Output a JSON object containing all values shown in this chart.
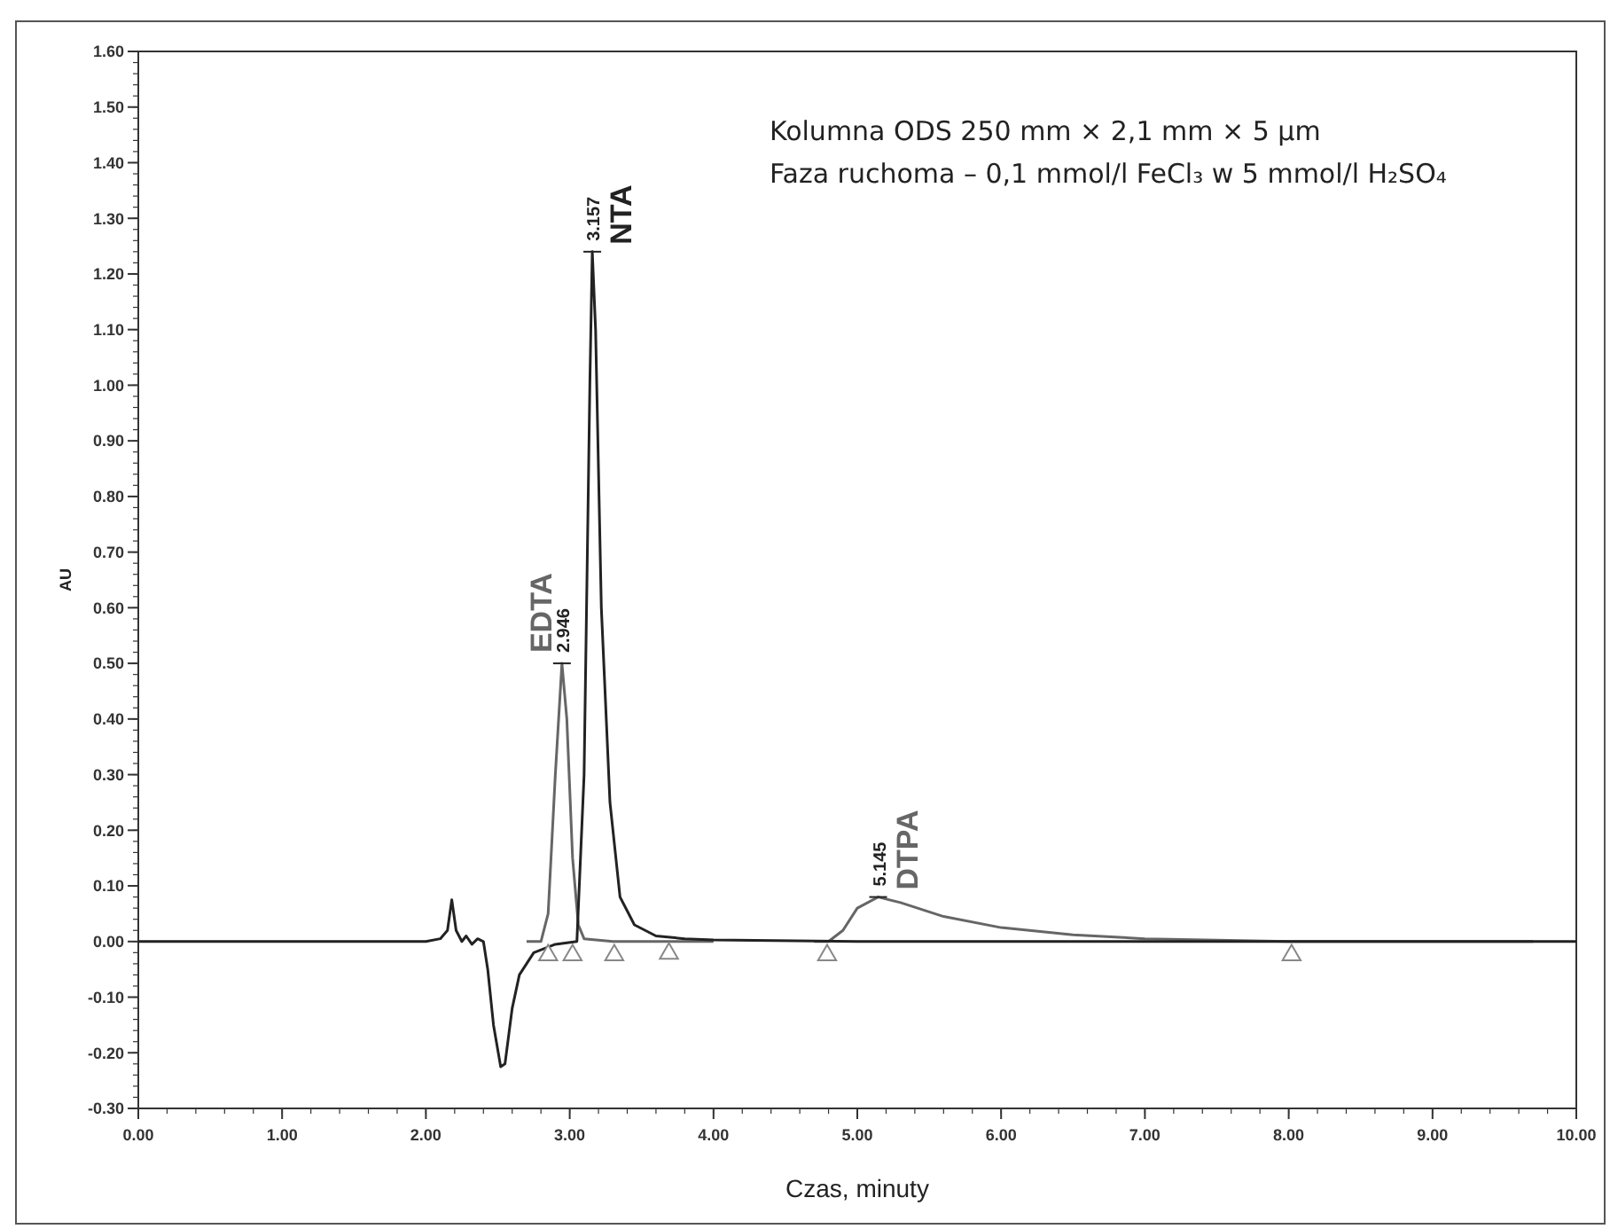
{
  "chart_data": {
    "type": "line",
    "xlabel": "Czas, minuty",
    "ylabel": "AU",
    "xlim": [
      0,
      10
    ],
    "ylim": [
      -0.3,
      1.6
    ],
    "xticks": [
      {
        "value": 0,
        "label": "0.00"
      },
      {
        "value": 1,
        "label": "1.00"
      },
      {
        "value": 2,
        "label": "2.00"
      },
      {
        "value": 3,
        "label": "3.00"
      },
      {
        "value": 4,
        "label": "4.00"
      },
      {
        "value": 5,
        "label": "5.00"
      },
      {
        "value": 6,
        "label": "6.00"
      },
      {
        "value": 7,
        "label": "7.00"
      },
      {
        "value": 8,
        "label": "8.00"
      },
      {
        "value": 9,
        "label": "9.00"
      },
      {
        "value": 10,
        "label": "10.00"
      }
    ],
    "yticks": [
      {
        "value": -0.3,
        "label": "-0.30"
      },
      {
        "value": -0.2,
        "label": "-0.20"
      },
      {
        "value": -0.1,
        "label": "-0.10"
      },
      {
        "value": 0,
        "label": "0.00"
      },
      {
        "value": 0.1,
        "label": "0.10"
      },
      {
        "value": 0.2,
        "label": "0.20"
      },
      {
        "value": 0.3,
        "label": "0.30"
      },
      {
        "value": 0.4,
        "label": "0.40"
      },
      {
        "value": 0.5,
        "label": "0.50"
      },
      {
        "value": 0.6,
        "label": "0.60"
      },
      {
        "value": 0.7,
        "label": "0.70"
      },
      {
        "value": 0.8,
        "label": "0.80"
      },
      {
        "value": 0.9,
        "label": "0.90"
      },
      {
        "value": 1.0,
        "label": "1.00"
      },
      {
        "value": 1.1,
        "label": "1.10"
      },
      {
        "value": 1.2,
        "label": "1.20"
      },
      {
        "value": 1.3,
        "label": "1.30"
      },
      {
        "value": 1.4,
        "label": "1.40"
      },
      {
        "value": 1.5,
        "label": "1.50"
      },
      {
        "value": 1.6,
        "label": "1.60"
      }
    ],
    "grid": false,
    "legend": false,
    "series": [
      {
        "name": "EDTA",
        "color": "#666666",
        "x": [
          2.7,
          2.8,
          2.85,
          2.9,
          2.946,
          2.98,
          3.02,
          3.06,
          3.1,
          3.3,
          4.0
        ],
        "values": [
          0,
          0,
          0.05,
          0.3,
          0.5,
          0.4,
          0.15,
          0.03,
          0.005,
          0,
          0
        ]
      },
      {
        "name": "DTPA",
        "color": "#666666",
        "x": [
          4.7,
          4.8,
          4.9,
          5.0,
          5.145,
          5.3,
          5.6,
          6.0,
          6.5,
          7.0,
          8.0,
          9.7
        ],
        "values": [
          0,
          0,
          0.02,
          0.06,
          0.08,
          0.07,
          0.045,
          0.025,
          0.012,
          0.005,
          0,
          0
        ]
      },
      {
        "name": "NTA",
        "color": "#222222",
        "x": [
          0,
          2.0,
          2.1,
          2.15,
          2.18,
          2.21,
          2.25,
          2.28,
          2.32,
          2.36,
          2.4,
          2.43,
          2.47,
          2.52,
          2.55,
          2.6,
          2.65,
          2.75,
          2.9,
          3.05,
          3.1,
          3.14,
          3.157,
          3.18,
          3.22,
          3.28,
          3.35,
          3.45,
          3.6,
          3.8,
          4.0,
          5.0,
          10.0
        ],
        "values": [
          0,
          0,
          0.005,
          0.02,
          0.075,
          0.02,
          0,
          0.01,
          -0.005,
          0.005,
          0,
          -0.05,
          -0.15,
          -0.225,
          -0.22,
          -0.12,
          -0.06,
          -0.02,
          -0.005,
          0,
          0.3,
          1.0,
          1.24,
          1.1,
          0.6,
          0.25,
          0.08,
          0.03,
          0.01,
          0.005,
          0.003,
          0,
          0
        ]
      },
      {
        "type": "scatter",
        "marker": "triangle",
        "color": "#888888",
        "x": [
          2.85,
          3.02,
          3.31,
          3.69,
          4.79,
          8.02
        ],
        "values": [
          -0.015,
          -0.015,
          -0.015,
          -0.012,
          -0.015,
          -0.015
        ]
      }
    ],
    "annotations": [
      "Kolumna ODS 250 mm × 2,1 mm × 5 µm",
      "Faza ruchoma – 0,1 mmol/l FeCl₃ w 5 mmol/l H₂SO₄",
      {
        "text": "2.946",
        "x": 2.946,
        "y": 0.5
      },
      {
        "text": "3.157",
        "x": 3.157,
        "y": 1.24
      },
      {
        "text": "5.145",
        "x": 5.145,
        "y": 0.08
      }
    ]
  }
}
